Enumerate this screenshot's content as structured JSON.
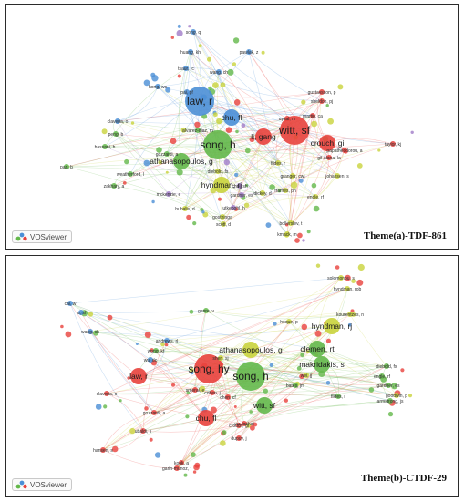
{
  "logo_text": "VOSviewer",
  "colors": {
    "red": "#e8413c",
    "green": "#63b84a",
    "blue": "#4b8fd6",
    "yellow": "#c9d33c",
    "purple": "#a07cc8",
    "edge": "#b9c7d6"
  },
  "panels": [
    {
      "id": "a",
      "caption": "Theme(a)-TDF-861",
      "nodes": [
        {
          "label": "song, h",
          "c": "green",
          "big": 1
        },
        {
          "label": "witt, sf",
          "c": "red",
          "big": 1
        },
        {
          "label": "law, r",
          "c": "blue",
          "big": 1
        },
        {
          "label": "chu, fl",
          "c": "blue",
          "big": 2
        },
        {
          "label": "li, gang",
          "c": "red",
          "big": 2
        },
        {
          "label": "crouch, gi",
          "c": "red",
          "big": 2
        },
        {
          "label": "athanasopoulos, g",
          "c": "green",
          "big": 2
        },
        {
          "label": "hyndman, rj",
          "c": "yellow",
          "big": 2
        },
        {
          "label": "claveria, o",
          "c": "blue",
          "big": 3
        },
        {
          "label": "pai, pf",
          "c": "blue",
          "big": 3
        },
        {
          "label": "wang, ch",
          "c": "blue",
          "big": 3
        },
        {
          "label": "pan, b",
          "c": "green",
          "big": 3
        },
        {
          "label": "hassani, h",
          "c": "green",
          "big": 3
        },
        {
          "label": "diebold, fx",
          "c": "yellow",
          "big": 3
        },
        {
          "label": "johansen, s",
          "c": "yellow",
          "big": 3
        },
        {
          "label": "uysal, m",
          "c": "red",
          "big": 3
        },
        {
          "label": "martin, ca",
          "c": "red",
          "big": 3
        },
        {
          "label": "granger, cwj",
          "c": "yellow",
          "big": 3
        },
        {
          "label": "fildes, r",
          "c": "yellow",
          "big": 3
        },
        {
          "label": "engle, rf",
          "c": "yellow",
          "big": 3
        },
        {
          "label": "frames, ph",
          "c": "yellow",
          "big": 3
        },
        {
          "label": "dickey, d",
          "c": "yellow",
          "big": 3
        },
        {
          "label": "song, q",
          "c": "blue",
          "big": 3
        },
        {
          "label": "huang, kh",
          "c": "blue",
          "big": 3
        },
        {
          "label": "pawlak, z",
          "c": "blue",
          "big": 3
        },
        {
          "label": "tsaur, rc",
          "c": "blue",
          "big": 3
        },
        {
          "label": "hong, wc",
          "c": "blue",
          "big": 3
        },
        {
          "label": "peng, b",
          "c": "green",
          "big": 3
        },
        {
          "label": "gil-alana, la",
          "c": "red",
          "big": 3
        },
        {
          "label": "papatheodorou, a",
          "c": "red",
          "big": 3
        },
        {
          "label": "gustavsson, p",
          "c": "red",
          "big": 3
        },
        {
          "label": "sheldon, pj",
          "c": "red",
          "big": 3
        },
        {
          "label": "alvarez-diaz, m",
          "c": "green",
          "big": 3
        },
        {
          "label": "gozzardi, a",
          "c": "green",
          "big": 3
        },
        {
          "label": "weatherford, l",
          "c": "green",
          "big": 3
        },
        {
          "label": "zakhary, a",
          "c": "green",
          "big": 3
        },
        {
          "label": "choi, sh",
          "c": "purple",
          "big": 3
        },
        {
          "label": "gardner, es",
          "c": "purple",
          "big": 3
        },
        {
          "label": "lutkepohl, h",
          "c": "purple",
          "big": 3
        },
        {
          "label": "mckenzie, e",
          "c": "purple",
          "big": 3
        },
        {
          "label": "buhalis, d",
          "c": "yellow",
          "big": 3
        },
        {
          "label": "gosthinga",
          "c": "yellow",
          "big": 3
        },
        {
          "label": "scott, d",
          "c": "yellow",
          "big": 3
        },
        {
          "label": "bollerslev, t",
          "c": "yellow",
          "big": 3
        },
        {
          "label": "kmack, m",
          "c": "yellow",
          "big": 3
        },
        {
          "label": "taylor, kj",
          "c": "red",
          "big": 3
        }
      ]
    },
    {
      "id": "b",
      "caption": "Theme(b)-CTDF-29",
      "nodes": [
        {
          "label": "song, hy",
          "c": "red",
          "big": 1
        },
        {
          "label": "song, h",
          "c": "green",
          "big": 1
        },
        {
          "label": "witt, sf",
          "c": "green",
          "big": 2
        },
        {
          "label": "chu, fl",
          "c": "red",
          "big": 2
        },
        {
          "label": "law, r",
          "c": "red",
          "big": 2
        },
        {
          "label": "hyndman, rj",
          "c": "yellow",
          "big": 2
        },
        {
          "label": "athanasopoulos, g",
          "c": "yellow",
          "big": 2
        },
        {
          "label": "clemen, rt",
          "c": "green",
          "big": 2
        },
        {
          "label": "makridakis, s",
          "c": "green",
          "big": 2
        },
        {
          "label": "shen, sj",
          "c": "yellow",
          "big": 3
        },
        {
          "label": "wong, kf",
          "c": "green",
          "big": 3
        },
        {
          "label": "diebold, fx",
          "c": "green",
          "big": 3
        },
        {
          "label": "armstrong, js",
          "c": "green",
          "big": 3
        },
        {
          "label": "wei, jj",
          "c": "yellow",
          "big": 3
        },
        {
          "label": "kourentzes, n",
          "c": "yellow",
          "big": 3
        },
        {
          "label": "bates, jm",
          "c": "green",
          "big": 3
        },
        {
          "label": "fildes, r",
          "c": "green",
          "big": 3
        },
        {
          "label": "claveria, o",
          "c": "red",
          "big": 3
        },
        {
          "label": "andrews, rl",
          "c": "blue",
          "big": 3
        },
        {
          "label": "wu, dc",
          "c": "blue",
          "big": 3
        },
        {
          "label": "wang, ch",
          "c": "blue",
          "big": 3
        },
        {
          "label": "cai, w",
          "c": "blue",
          "big": 3
        },
        {
          "label": "lu, sf",
          "c": "blue",
          "big": 3
        },
        {
          "label": "hansen, s",
          "c": "red",
          "big": 3
        },
        {
          "label": "genre, v",
          "c": "green",
          "big": 3
        },
        {
          "label": "engle, rf",
          "c": "green",
          "big": 3
        },
        {
          "label": "gardner, es",
          "c": "green",
          "big": 3
        },
        {
          "label": "goodwin, p",
          "c": "yellow",
          "big": 3
        },
        {
          "label": "hyndman, rob",
          "c": "yellow",
          "big": 3
        },
        {
          "label": "hoque, p",
          "c": "yellow",
          "big": 3
        },
        {
          "label": "smeral, e",
          "c": "red",
          "big": 3
        },
        {
          "label": "chen, cf",
          "c": "red",
          "big": 3
        },
        {
          "label": "crouch, gi",
          "c": "red",
          "big": 3
        },
        {
          "label": "garin-munoz, t",
          "c": "red",
          "big": 3
        },
        {
          "label": "dupuy, j",
          "c": "red",
          "big": 3
        },
        {
          "label": "cohen, j",
          "c": "red",
          "big": 3
        },
        {
          "label": "gozzardi, a",
          "c": "red",
          "big": 3
        },
        {
          "label": "ubaldi, s",
          "c": "red",
          "big": 3
        },
        {
          "label": "kook, a",
          "c": "red",
          "big": 3
        },
        {
          "label": "vu, jachai",
          "c": "red",
          "big": 3
        },
        {
          "label": "solomonou, s",
          "c": "yellow",
          "big": 3
        }
      ]
    }
  ]
}
